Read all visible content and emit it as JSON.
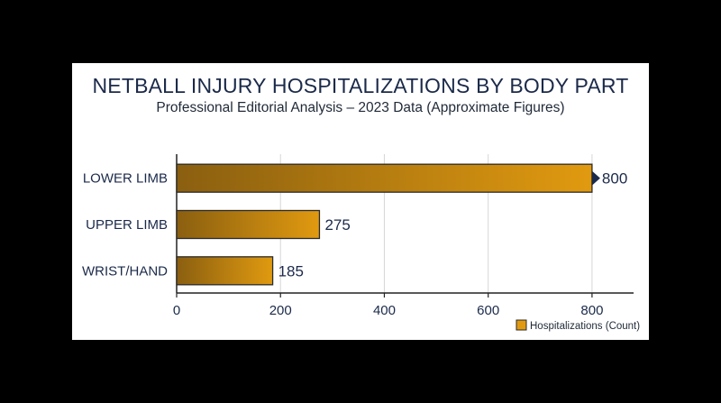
{
  "chart_data": {
    "type": "bar",
    "orientation": "horizontal",
    "title": "NETBALL INJURY HOSPITALIZATIONS BY BODY PART",
    "subtitle": "Professional Editorial Analysis – 2023 Data (Approximate Figures)",
    "categories": [
      "LOWER LIMB",
      "UPPER LIMB",
      "WRIST/HAND"
    ],
    "series": [
      {
        "name": "Hospitalizations (Count)",
        "values": [
          800,
          275,
          185
        ]
      }
    ],
    "data_labels": [
      "800",
      "275",
      "185"
    ],
    "xlim": [
      0,
      880
    ],
    "xticks": [
      0,
      200,
      400,
      600,
      800
    ],
    "xtick_labels": [
      "0",
      "200",
      "400",
      "600",
      "800"
    ],
    "grid": true,
    "legend_position": "bottom-right",
    "colors": {
      "bar_light": "#e19a10",
      "bar_dark": "#8a5f10",
      "bar_outline": "#2a2a2a",
      "text_dark": "#1b2a4a",
      "grid": "#d6d6d6",
      "marker": "#1b2a4a"
    }
  }
}
